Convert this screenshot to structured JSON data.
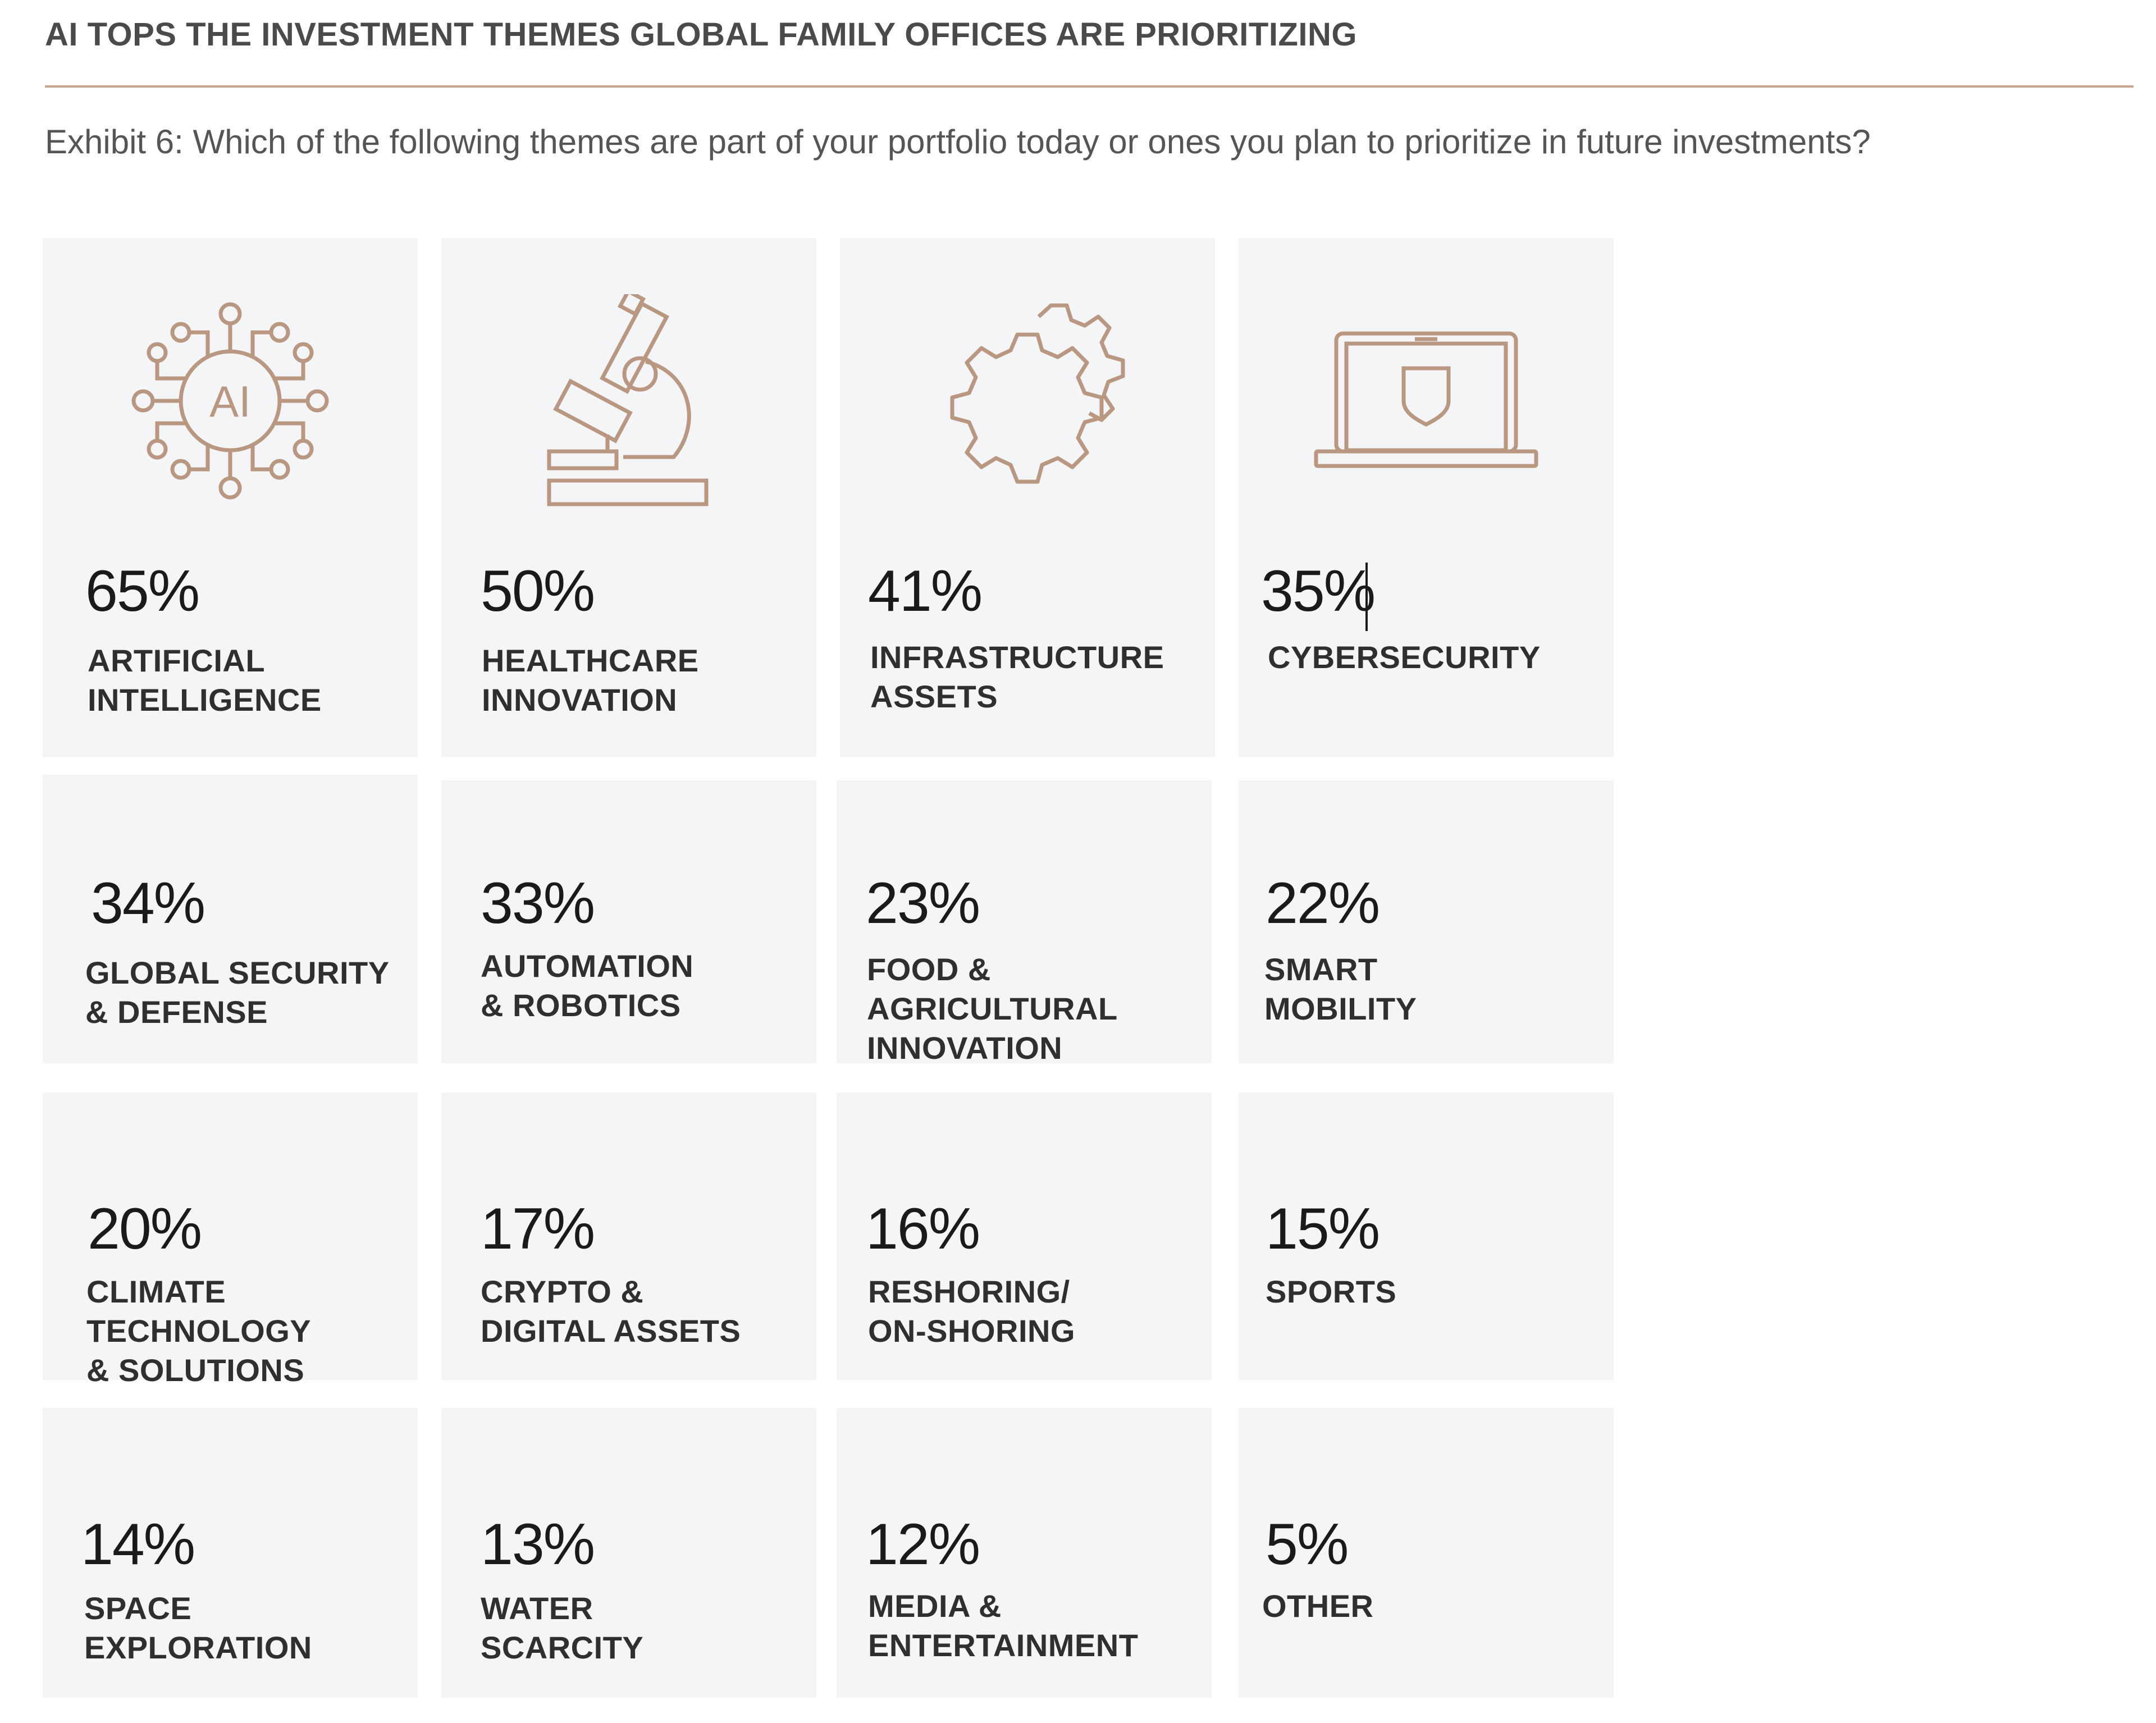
{
  "headline": "AI TOPS THE INVESTMENT THEMES GLOBAL FAMILY OFFICES ARE PRIORITIZING",
  "subtitle": "Exhibit 6: Which of the following themes are part of your portfolio today or ones you plan to prioritize in future investments?",
  "colors": {
    "accent": "#c9a48e",
    "icon_stroke": "#b99780",
    "tile_bg": "#f4f5f7"
  },
  "chart_data": {
    "type": "table",
    "categories": [
      "ARTIFICIAL INTELLIGENCE",
      "HEALTHCARE INNOVATION",
      "INFRASTRUCTURE ASSETS",
      "CYBERSECURITY",
      "GLOBAL SECURITY & DEFENSE",
      "AUTOMATION & ROBOTICS",
      "FOOD & AGRICULTURAL INNOVATION",
      "SMART MOBILITY",
      "CLIMATE TECHNOLOGY & SOLUTIONS",
      "CRYPTO & DIGITAL ASSETS",
      "RESHORING/ ON-SHORING",
      "SPORTS",
      "SPACE EXPLORATION",
      "WATER SCARCITY",
      "MEDIA & ENTERTAINMENT",
      "OTHER"
    ],
    "values": [
      65,
      50,
      41,
      35,
      34,
      33,
      23,
      22,
      20,
      17,
      16,
      15,
      14,
      13,
      12,
      5
    ],
    "unit": "%"
  },
  "tiles": [
    {
      "pct": "65%",
      "label": "ARTIFICIAL\nINTELLIGENCE",
      "icon": "ai-chip-icon",
      "icon_text": "AI"
    },
    {
      "pct": "50%",
      "label": "HEALTHCARE\nINNOVATION",
      "icon": "microscope-icon"
    },
    {
      "pct": "41%",
      "label": "INFRASTRUCTURE\nASSETS",
      "icon": "gears-icon"
    },
    {
      "pct": "35%",
      "label": "CYBERSECURITY",
      "icon": "laptop-shield-icon"
    },
    {
      "pct": "34%",
      "label": "GLOBAL SECURITY\n& DEFENSE"
    },
    {
      "pct": "33%",
      "label": "AUTOMATION\n& ROBOTICS"
    },
    {
      "pct": "23%",
      "label": "FOOD & AGRICULTURAL\nINNOVATION"
    },
    {
      "pct": "22%",
      "label": "SMART\nMOBILITY"
    },
    {
      "pct": "20%",
      "label": "CLIMATE TECHNOLOGY\n& SOLUTIONS"
    },
    {
      "pct": "17%",
      "label": "CRYPTO &\nDIGITAL ASSETS"
    },
    {
      "pct": "16%",
      "label": "RESHORING/\nON-SHORING"
    },
    {
      "pct": "15%",
      "label": "SPORTS"
    },
    {
      "pct": "14%",
      "label": "SPACE\nEXPLORATION"
    },
    {
      "pct": "13%",
      "label": "WATER\nSCARCITY"
    },
    {
      "pct": "12%",
      "label": "MEDIA &\nENTERTAINMENT"
    },
    {
      "pct": "5%",
      "label": "OTHER"
    }
  ]
}
